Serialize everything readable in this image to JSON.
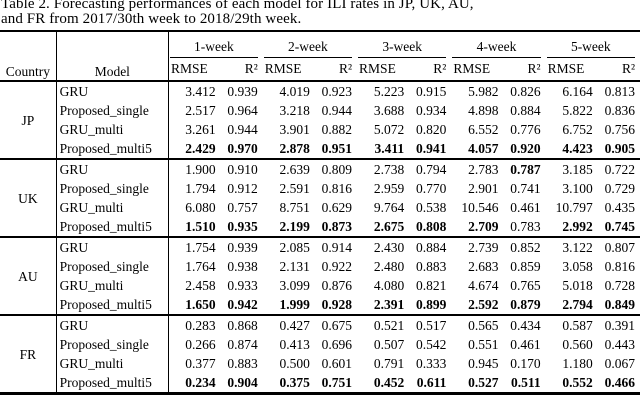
{
  "caption": {
    "line1": "Table 2. Forecasting performances of each model for ILI rates in JP, UK, AU,",
    "line2": "and FR from 2017/30th week to 2018/29th week."
  },
  "table": {
    "headers": {
      "country": "Country",
      "model": "Model",
      "week_groups": [
        "1-week",
        "2-week",
        "3-week",
        "4-week",
        "5-week"
      ],
      "metrics": [
        "RMSE",
        "R²"
      ]
    },
    "sections": [
      {
        "country": "JP",
        "rows": [
          {
            "model": "GRU",
            "values": [
              "3.412",
              "0.939",
              "4.019",
              "0.923",
              "5.223",
              "0.915",
              "5.982",
              "0.826",
              "6.164",
              "0.813"
            ],
            "bold": []
          },
          {
            "model": "Proposed_single",
            "values": [
              "2.517",
              "0.964",
              "3.218",
              "0.944",
              "3.688",
              "0.934",
              "4.898",
              "0.884",
              "5.822",
              "0.836"
            ],
            "bold": []
          },
          {
            "model": "GRU_multi",
            "values": [
              "3.261",
              "0.944",
              "3.901",
              "0.882",
              "5.072",
              "0.820",
              "6.552",
              "0.776",
              "6.752",
              "0.756"
            ],
            "bold": []
          },
          {
            "model": "Proposed_multi5",
            "values": [
              "2.429",
              "0.970",
              "2.878",
              "0.951",
              "3.411",
              "0.941",
              "4.057",
              "0.920",
              "4.423",
              "0.905"
            ],
            "bold": [
              0,
              1,
              2,
              3,
              4,
              5,
              6,
              7,
              8,
              9
            ]
          }
        ]
      },
      {
        "country": "UK",
        "rows": [
          {
            "model": "GRU",
            "values": [
              "1.900",
              "0.910",
              "2.639",
              "0.809",
              "2.738",
              "0.794",
              "2.783",
              "0.787",
              "3.185",
              "0.722"
            ],
            "bold": [
              7
            ]
          },
          {
            "model": "Proposed_single",
            "values": [
              "1.794",
              "0.912",
              "2.591",
              "0.816",
              "2.959",
              "0.770",
              "2.901",
              "0.741",
              "3.100",
              "0.729"
            ],
            "bold": []
          },
          {
            "model": "GRU_multi",
            "values": [
              "6.080",
              "0.757",
              "8.751",
              "0.629",
              "9.764",
              "0.538",
              "10.546",
              "0.461",
              "10.797",
              "0.435"
            ],
            "bold": []
          },
          {
            "model": "Proposed_multi5",
            "values": [
              "1.510",
              "0.935",
              "2.199",
              "0.873",
              "2.675",
              "0.808",
              "2.709",
              "0.783",
              "2.992",
              "0.745"
            ],
            "bold": [
              0,
              1,
              2,
              3,
              4,
              5,
              6,
              8,
              9
            ]
          }
        ]
      },
      {
        "country": "AU",
        "rows": [
          {
            "model": "GRU",
            "values": [
              "1.754",
              "0.939",
              "2.085",
              "0.914",
              "2.430",
              "0.884",
              "2.739",
              "0.852",
              "3.122",
              "0.807"
            ],
            "bold": []
          },
          {
            "model": "Proposed_single",
            "values": [
              "1.764",
              "0.938",
              "2.131",
              "0.922",
              "2.480",
              "0.883",
              "2.683",
              "0.859",
              "3.058",
              "0.816"
            ],
            "bold": []
          },
          {
            "model": "GRU_multi",
            "values": [
              "2.458",
              "0.933",
              "3.099",
              "0.876",
              "4.080",
              "0.821",
              "4.674",
              "0.765",
              "5.018",
              "0.728"
            ],
            "bold": []
          },
          {
            "model": "Proposed_multi5",
            "values": [
              "1.650",
              "0.942",
              "1.999",
              "0.928",
              "2.391",
              "0.899",
              "2.592",
              "0.879",
              "2.794",
              "0.849"
            ],
            "bold": [
              0,
              1,
              2,
              3,
              4,
              5,
              6,
              7,
              8,
              9
            ]
          }
        ]
      },
      {
        "country": "FR",
        "rows": [
          {
            "model": "GRU",
            "values": [
              "0.283",
              "0.868",
              "0.427",
              "0.675",
              "0.521",
              "0.517",
              "0.565",
              "0.434",
              "0.587",
              "0.391"
            ],
            "bold": []
          },
          {
            "model": "Proposed_single",
            "values": [
              "0.266",
              "0.874",
              "0.413",
              "0.696",
              "0.507",
              "0.542",
              "0.551",
              "0.461",
              "0.560",
              "0.443"
            ],
            "bold": []
          },
          {
            "model": "GRU_multi",
            "values": [
              "0.377",
              "0.883",
              "0.500",
              "0.601",
              "0.791",
              "0.333",
              "0.945",
              "0.170",
              "1.180",
              "0.067"
            ],
            "bold": []
          },
          {
            "model": "Proposed_multi5",
            "values": [
              "0.234",
              "0.904",
              "0.375",
              "0.751",
              "0.452",
              "0.611",
              "0.527",
              "0.511",
              "0.552",
              "0.466"
            ],
            "bold": [
              0,
              1,
              2,
              3,
              4,
              5,
              6,
              7,
              8,
              9
            ]
          }
        ]
      }
    ]
  }
}
